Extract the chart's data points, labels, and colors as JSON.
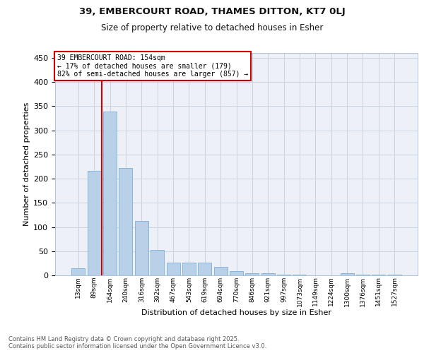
{
  "title_line1": "39, EMBERCOURT ROAD, THAMES DITTON, KT7 0LJ",
  "title_line2": "Size of property relative to detached houses in Esher",
  "xlabel": "Distribution of detached houses by size in Esher",
  "ylabel": "Number of detached properties",
  "categories": [
    "13sqm",
    "89sqm",
    "164sqm",
    "240sqm",
    "316sqm",
    "392sqm",
    "467sqm",
    "543sqm",
    "619sqm",
    "694sqm",
    "770sqm",
    "846sqm",
    "921sqm",
    "997sqm",
    "1073sqm",
    "1149sqm",
    "1224sqm",
    "1300sqm",
    "1376sqm",
    "1451sqm",
    "1527sqm"
  ],
  "values": [
    15,
    216,
    339,
    222,
    112,
    53,
    27,
    26,
    26,
    17,
    9,
    5,
    4,
    1,
    1,
    0,
    0,
    4,
    2,
    1,
    2
  ],
  "bar_color": "#b8d0e8",
  "bar_edge_color": "#7aafd4",
  "red_line_color": "#cc0000",
  "annotation_title": "39 EMBERCOURT ROAD: 154sqm",
  "annotation_smaller": "← 17% of detached houses are smaller (179)",
  "annotation_larger": "82% of semi-detached houses are larger (857) →",
  "ylim": [
    0,
    460
  ],
  "yticks": [
    0,
    50,
    100,
    150,
    200,
    250,
    300,
    350,
    400,
    450
  ],
  "grid_color": "#c8d4e0",
  "bg_color": "#edf1f7",
  "footer_line1": "Contains HM Land Registry data © Crown copyright and database right 2025.",
  "footer_line2": "Contains public sector information licensed under the Open Government Licence v3.0."
}
